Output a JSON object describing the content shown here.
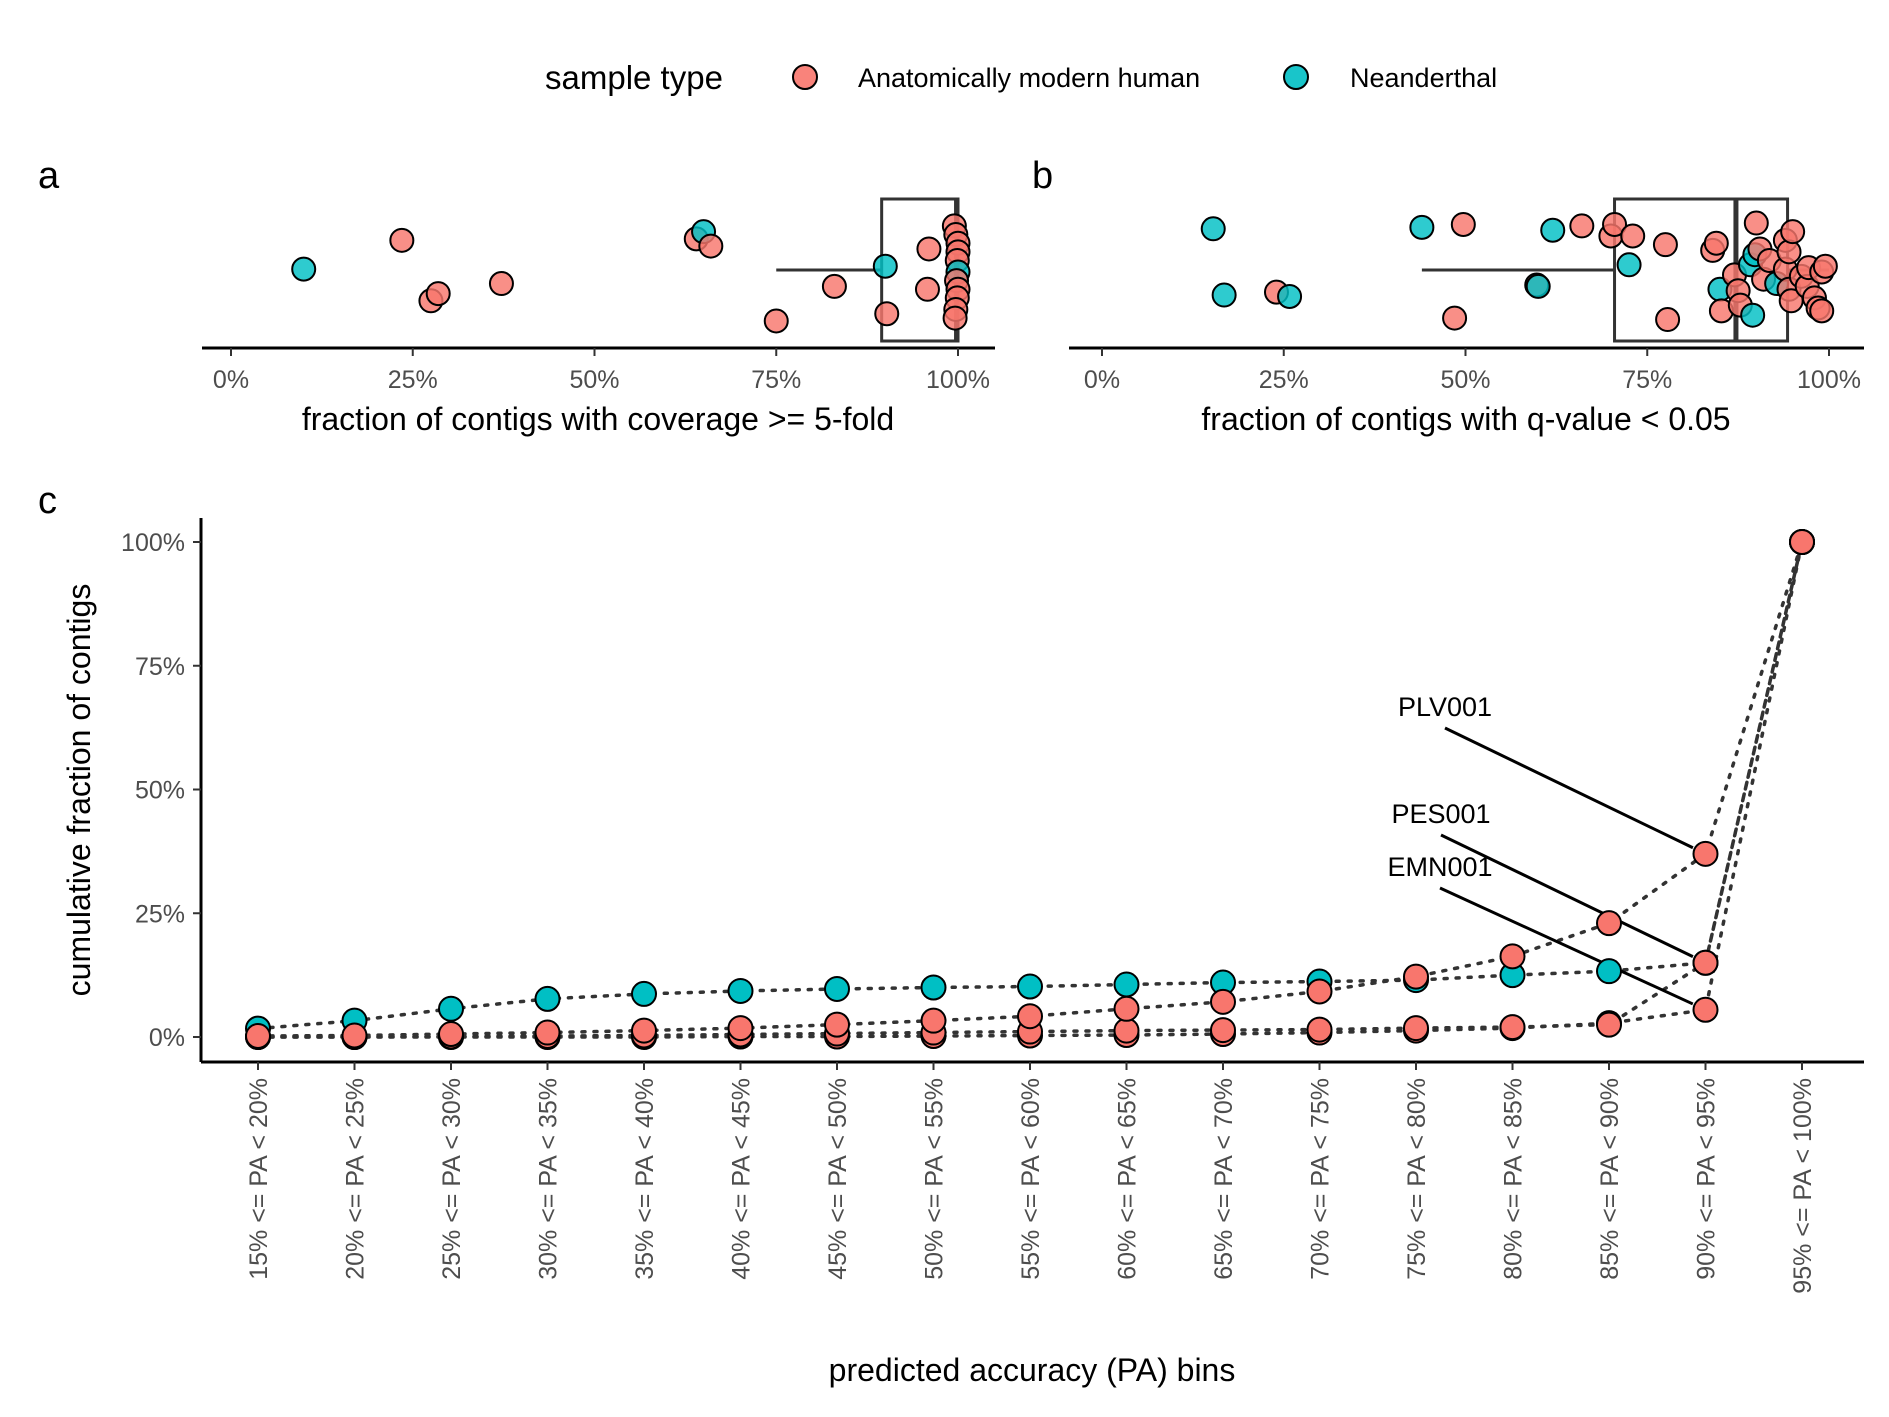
{
  "legend": {
    "title": "sample type",
    "items": [
      {
        "label": "Anatomically modern human",
        "color": "#F8766D"
      },
      {
        "label": "Neanderthal",
        "color": "#00BFC4"
      }
    ]
  },
  "colors": {
    "amh": "#F8766D",
    "nea": "#00BFC4",
    "outline": "#000000"
  },
  "chart_data": [
    {
      "id": "a",
      "tag": "a",
      "type": "scatter",
      "subtype": "jittered dot plot with boxplot",
      "xlabel": "fraction of contigs with coverage >= 5-fold",
      "xlim": [
        0,
        1
      ],
      "xticks": [
        0,
        0.25,
        0.5,
        0.75,
        1
      ],
      "xticklabels": [
        "0%",
        "25%",
        "50%",
        "75%",
        "100%"
      ],
      "box": {
        "q1": 0.895,
        "median": 0.998,
        "q3": 1.0,
        "whisker_low": 0.75,
        "whisker_high": 1.0
      },
      "points": [
        {
          "x": 0.1,
          "j": 0.48,
          "g": "nea"
        },
        {
          "x": 0.235,
          "j": 0.28,
          "g": "amh"
        },
        {
          "x": 0.275,
          "j": 0.7,
          "g": "amh"
        },
        {
          "x": 0.285,
          "j": 0.65,
          "g": "amh"
        },
        {
          "x": 0.372,
          "j": 0.58,
          "g": "amh"
        },
        {
          "x": 0.64,
          "j": 0.27,
          "g": "amh"
        },
        {
          "x": 0.65,
          "j": 0.22,
          "g": "nea"
        },
        {
          "x": 0.66,
          "j": 0.32,
          "g": "amh"
        },
        {
          "x": 0.75,
          "j": 0.84,
          "g": "amh"
        },
        {
          "x": 0.83,
          "j": 0.6,
          "g": "amh"
        },
        {
          "x": 0.9,
          "j": 0.46,
          "g": "nea"
        },
        {
          "x": 0.902,
          "j": 0.79,
          "g": "amh"
        },
        {
          "x": 0.958,
          "j": 0.62,
          "g": "amh"
        },
        {
          "x": 0.96,
          "j": 0.34,
          "g": "amh"
        },
        {
          "x": 0.995,
          "j": 0.18,
          "g": "amh"
        },
        {
          "x": 0.997,
          "j": 0.24,
          "g": "amh"
        },
        {
          "x": 1.0,
          "j": 0.3,
          "g": "amh"
        },
        {
          "x": 1.0,
          "j": 0.36,
          "g": "amh"
        },
        {
          "x": 0.999,
          "j": 0.42,
          "g": "amh"
        },
        {
          "x": 1.0,
          "j": 0.5,
          "g": "nea"
        },
        {
          "x": 0.998,
          "j": 0.56,
          "g": "amh"
        },
        {
          "x": 1.0,
          "j": 0.62,
          "g": "amh"
        },
        {
          "x": 0.999,
          "j": 0.68,
          "g": "amh"
        },
        {
          "x": 0.997,
          "j": 0.76,
          "g": "amh"
        },
        {
          "x": 0.996,
          "j": 0.82,
          "g": "amh"
        }
      ]
    },
    {
      "id": "b",
      "tag": "b",
      "type": "scatter",
      "subtype": "jittered dot plot with boxplot",
      "xlabel": "fraction of contigs with q-value < 0.05",
      "xlim": [
        0,
        1
      ],
      "xticks": [
        0,
        0.25,
        0.5,
        0.75,
        1
      ],
      "xticklabels": [
        "0%",
        "25%",
        "50%",
        "75%",
        "100%"
      ],
      "box": {
        "q1": 0.705,
        "median": 0.872,
        "q3": 0.943,
        "whisker_low": 0.44,
        "whisker_high": 1.0
      },
      "points": [
        {
          "x": 0.153,
          "j": 0.2,
          "g": "nea"
        },
        {
          "x": 0.168,
          "j": 0.66,
          "g": "nea"
        },
        {
          "x": 0.24,
          "j": 0.64,
          "g": "amh"
        },
        {
          "x": 0.258,
          "j": 0.67,
          "g": "nea"
        },
        {
          "x": 0.44,
          "j": 0.19,
          "g": "nea"
        },
        {
          "x": 0.485,
          "j": 0.82,
          "g": "amh"
        },
        {
          "x": 0.497,
          "j": 0.17,
          "g": "amh"
        },
        {
          "x": 0.598,
          "j": 0.59,
          "g": "amh"
        },
        {
          "x": 0.6,
          "j": 0.6,
          "g": "nea"
        },
        {
          "x": 0.62,
          "j": 0.21,
          "g": "nea"
        },
        {
          "x": 0.66,
          "j": 0.18,
          "g": "amh"
        },
        {
          "x": 0.7,
          "j": 0.25,
          "g": "amh"
        },
        {
          "x": 0.705,
          "j": 0.17,
          "g": "amh"
        },
        {
          "x": 0.725,
          "j": 0.45,
          "g": "nea"
        },
        {
          "x": 0.73,
          "j": 0.25,
          "g": "amh"
        },
        {
          "x": 0.775,
          "j": 0.31,
          "g": "amh"
        },
        {
          "x": 0.778,
          "j": 0.83,
          "g": "amh"
        },
        {
          "x": 0.84,
          "j": 0.35,
          "g": "amh"
        },
        {
          "x": 0.845,
          "j": 0.3,
          "g": "amh"
        },
        {
          "x": 0.85,
          "j": 0.62,
          "g": "nea"
        },
        {
          "x": 0.852,
          "j": 0.77,
          "g": "amh"
        },
        {
          "x": 0.87,
          "j": 0.52,
          "g": "amh"
        },
        {
          "x": 0.875,
          "j": 0.63,
          "g": "amh"
        },
        {
          "x": 0.878,
          "j": 0.73,
          "g": "amh"
        },
        {
          "x": 0.892,
          "j": 0.45,
          "g": "nea"
        },
        {
          "x": 0.895,
          "j": 0.8,
          "g": "nea"
        },
        {
          "x": 0.898,
          "j": 0.38,
          "g": "nea"
        },
        {
          "x": 0.9,
          "j": 0.16,
          "g": "amh"
        },
        {
          "x": 0.905,
          "j": 0.34,
          "g": "amh"
        },
        {
          "x": 0.91,
          "j": 0.55,
          "g": "amh"
        },
        {
          "x": 0.918,
          "j": 0.42,
          "g": "amh"
        },
        {
          "x": 0.928,
          "j": 0.58,
          "g": "nea"
        },
        {
          "x": 0.94,
          "j": 0.28,
          "g": "amh"
        },
        {
          "x": 0.94,
          "j": 0.48,
          "g": "amh"
        },
        {
          "x": 0.945,
          "j": 0.36,
          "g": "amh"
        },
        {
          "x": 0.945,
          "j": 0.62,
          "g": "amh"
        },
        {
          "x": 0.948,
          "j": 0.7,
          "g": "amh"
        },
        {
          "x": 0.95,
          "j": 0.22,
          "g": "amh"
        },
        {
          "x": 0.962,
          "j": 0.53,
          "g": "amh"
        },
        {
          "x": 0.97,
          "j": 0.6,
          "g": "amh"
        },
        {
          "x": 0.972,
          "j": 0.47,
          "g": "amh"
        },
        {
          "x": 0.98,
          "j": 0.68,
          "g": "amh"
        },
        {
          "x": 0.985,
          "j": 0.75,
          "g": "amh"
        },
        {
          "x": 0.99,
          "j": 0.5,
          "g": "amh"
        },
        {
          "x": 0.99,
          "j": 0.77,
          "g": "amh"
        },
        {
          "x": 0.995,
          "j": 0.46,
          "g": "amh"
        }
      ]
    },
    {
      "id": "c",
      "tag": "c",
      "type": "line",
      "subtype": "cumulative dotted lines with points",
      "xlabel": "predicted accuracy (PA) bins",
      "ylabel": "cumulative fraction of contigs",
      "ylim": [
        0,
        1
      ],
      "yticks": [
        0,
        0.25,
        0.5,
        0.75,
        1
      ],
      "yticklabels": [
        "0%",
        "25%",
        "50%",
        "75%",
        "100%"
      ],
      "categories": [
        "15% <= PA < 20%",
        "20% <= PA < 25%",
        "25% <= PA < 30%",
        "30% <= PA < 35%",
        "35% <= PA < 40%",
        "40% <= PA < 45%",
        "45% <= PA < 50%",
        "50% <= PA < 55%",
        "55% <= PA < 60%",
        "60% <= PA < 65%",
        "65% <= PA < 70%",
        "70% <= PA < 75%",
        "75% <= PA < 80%",
        "80% <= PA < 85%",
        "85% <= PA < 90%",
        "90% <= PA < 95%",
        "95% <= PA < 100%"
      ],
      "series": [
        {
          "g": "nea",
          "label": "",
          "values": [
            0.017,
            0.033,
            0.057,
            0.077,
            0.087,
            0.093,
            0.097,
            0.1,
            0.102,
            0.106,
            0.11,
            0.112,
            0.115,
            0.125,
            0.133,
            0.15,
            1.0
          ]
        },
        {
          "g": "amh",
          "label": "PLV001",
          "values": [
            0.002,
            0.003,
            0.006,
            0.009,
            0.013,
            0.018,
            0.025,
            0.033,
            0.042,
            0.057,
            0.071,
            0.092,
            0.122,
            0.163,
            0.23,
            0.37,
            1.0
          ]
        },
        {
          "g": "amh",
          "label": "PES001",
          "values": [
            0.0,
            0.0,
            0.001,
            0.002,
            0.003,
            0.005,
            0.007,
            0.009,
            0.011,
            0.013,
            0.014,
            0.015,
            0.018,
            0.02,
            0.025,
            0.15,
            1.0
          ]
        },
        {
          "g": "amh",
          "label": "EMN001",
          "values": [
            0.0,
            0.0,
            0.0,
            0.0,
            0.0,
            0.001,
            0.001,
            0.002,
            0.003,
            0.004,
            0.006,
            0.009,
            0.013,
            0.018,
            0.028,
            0.055,
            1.0
          ]
        }
      ],
      "annotations": [
        {
          "label": "PLV001",
          "target_series": 1,
          "target_bin": 15
        },
        {
          "label": "PES001",
          "target_series": 2,
          "target_bin": 15
        },
        {
          "label": "EMN001",
          "target_series": 3,
          "target_bin": 15
        }
      ]
    }
  ]
}
